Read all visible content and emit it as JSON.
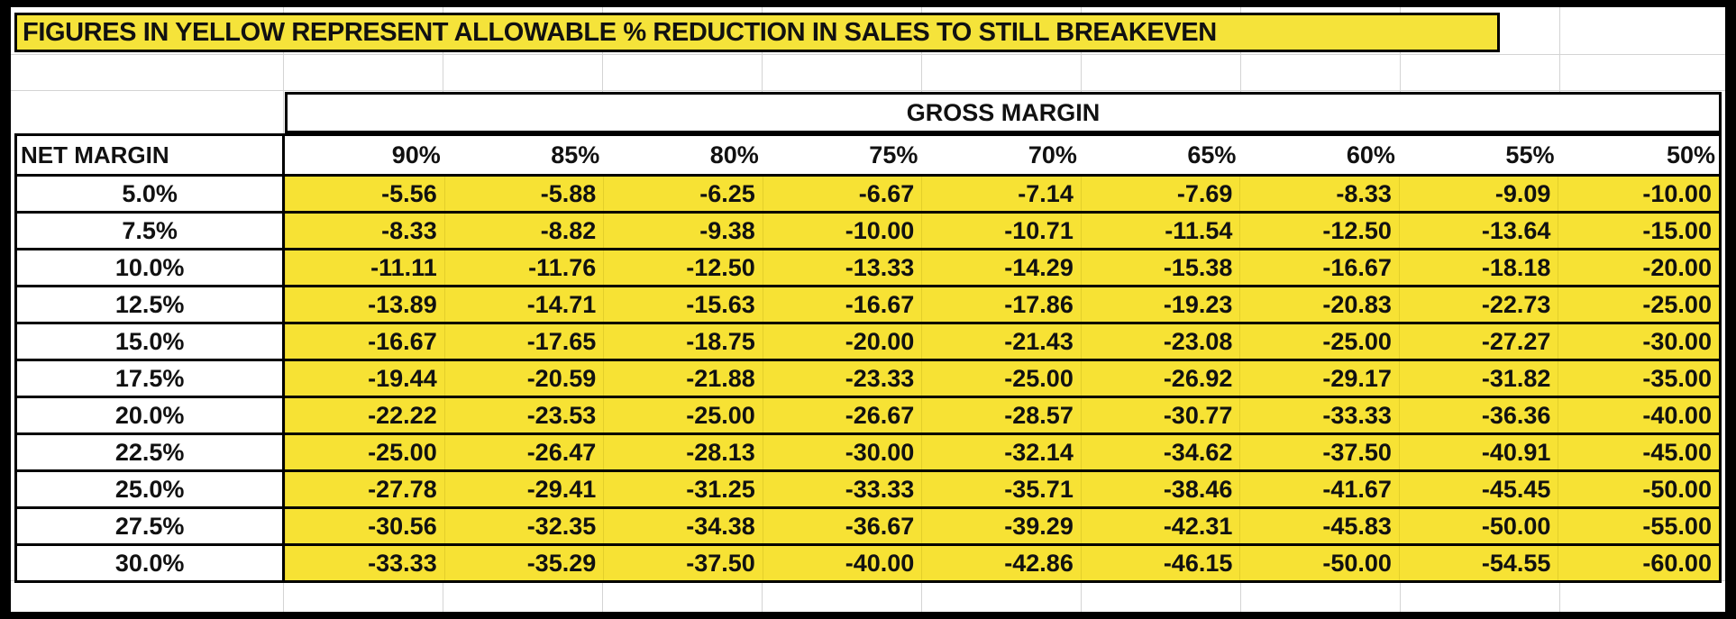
{
  "title": "FIGURES IN YELLOW REPRESENT ALLOWABLE % REDUCTION IN SALES TO STILL BREAKEVEN",
  "group_header": "GROSS MARGIN",
  "row_header": "NET MARGIN",
  "columns": [
    "90%",
    "85%",
    "80%",
    "75%",
    "70%",
    "65%",
    "60%",
    "55%",
    "50%"
  ],
  "rows": [
    {
      "label": "5.0%",
      "values": [
        "-5.56",
        "-5.88",
        "-6.25",
        "-6.67",
        "-7.14",
        "-7.69",
        "-8.33",
        "-9.09",
        "-10.00"
      ]
    },
    {
      "label": "7.5%",
      "values": [
        "-8.33",
        "-8.82",
        "-9.38",
        "-10.00",
        "-10.71",
        "-11.54",
        "-12.50",
        "-13.64",
        "-15.00"
      ]
    },
    {
      "label": "10.0%",
      "values": [
        "-11.11",
        "-11.76",
        "-12.50",
        "-13.33",
        "-14.29",
        "-15.38",
        "-16.67",
        "-18.18",
        "-20.00"
      ]
    },
    {
      "label": "12.5%",
      "values": [
        "-13.89",
        "-14.71",
        "-15.63",
        "-16.67",
        "-17.86",
        "-19.23",
        "-20.83",
        "-22.73",
        "-25.00"
      ]
    },
    {
      "label": "15.0%",
      "values": [
        "-16.67",
        "-17.65",
        "-18.75",
        "-20.00",
        "-21.43",
        "-23.08",
        "-25.00",
        "-27.27",
        "-30.00"
      ]
    },
    {
      "label": "17.5%",
      "values": [
        "-19.44",
        "-20.59",
        "-21.88",
        "-23.33",
        "-25.00",
        "-26.92",
        "-29.17",
        "-31.82",
        "-35.00"
      ]
    },
    {
      "label": "20.0%",
      "values": [
        "-22.22",
        "-23.53",
        "-25.00",
        "-26.67",
        "-28.57",
        "-30.77",
        "-33.33",
        "-36.36",
        "-40.00"
      ]
    },
    {
      "label": "22.5%",
      "values": [
        "-25.00",
        "-26.47",
        "-28.13",
        "-30.00",
        "-32.14",
        "-34.62",
        "-37.50",
        "-40.91",
        "-45.00"
      ]
    },
    {
      "label": "25.0%",
      "values": [
        "-27.78",
        "-29.41",
        "-31.25",
        "-33.33",
        "-35.71",
        "-38.46",
        "-41.67",
        "-45.45",
        "-50.00"
      ]
    },
    {
      "label": "27.5%",
      "values": [
        "-30.56",
        "-32.35",
        "-34.38",
        "-36.67",
        "-39.29",
        "-42.31",
        "-45.83",
        "-50.00",
        "-55.00"
      ]
    },
    {
      "label": "30.0%",
      "values": [
        "-33.33",
        "-35.29",
        "-37.50",
        "-40.00",
        "-42.86",
        "-46.15",
        "-50.00",
        "-54.55",
        "-60.00"
      ]
    }
  ],
  "colors": {
    "highlight": "#f7e234",
    "border": "#000000",
    "background": "#ffffff",
    "frame": "#000000"
  }
}
